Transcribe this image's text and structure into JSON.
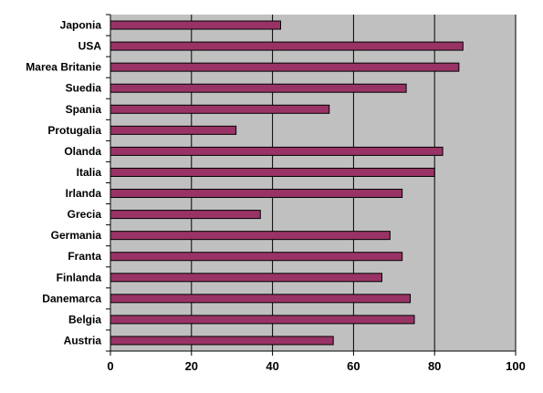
{
  "chart_data": {
    "type": "bar",
    "orientation": "horizontal",
    "categories": [
      "Japonia",
      "USA",
      "Marea Britanie",
      "Suedia",
      "Spania",
      "Protugalia",
      "Olanda",
      "Italia",
      "Irlanda",
      "Grecia",
      "Germania",
      "Franta",
      "Finlanda",
      "Danemarca",
      "Belgia",
      "Austria"
    ],
    "values": [
      42,
      87,
      86,
      73,
      54,
      31,
      82,
      80,
      72,
      37,
      69,
      72,
      67,
      74,
      75,
      55
    ],
    "title": "",
    "xlabel": "",
    "ylabel": "",
    "xlim": [
      0,
      100
    ],
    "xticks": [
      "0",
      "20",
      "40",
      "60",
      "80",
      "100"
    ],
    "grid": "vertical",
    "legend": "none",
    "colors": {
      "bar": "#993366",
      "plot_background": "#c0c0c0",
      "gridline": "#000000",
      "axis": "#000000"
    }
  }
}
